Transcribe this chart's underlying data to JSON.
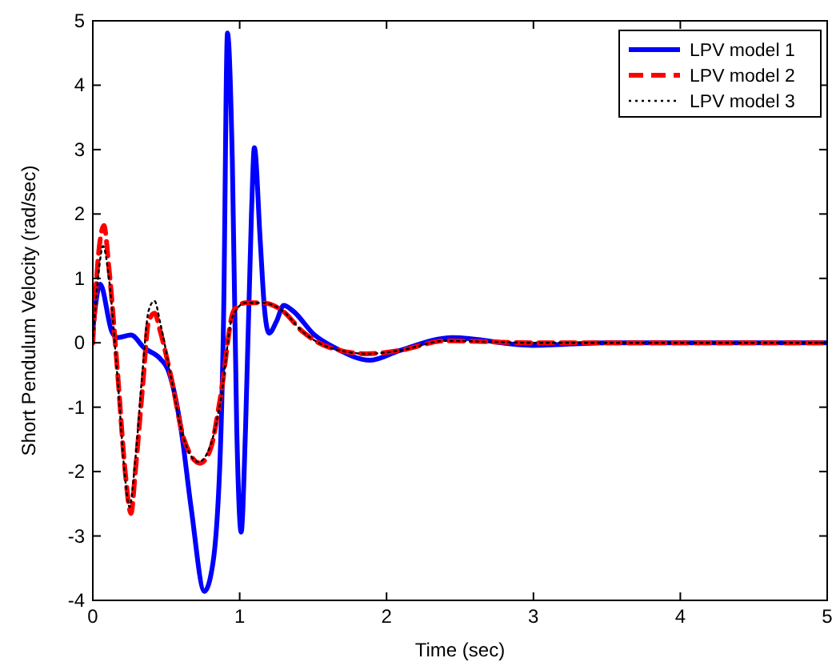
{
  "chart_data": {
    "type": "line",
    "xlabel": "Time (sec)",
    "ylabel": "Short Pendulum Velocity (rad/sec)",
    "xlim": [
      0,
      5
    ],
    "ylim": [
      -4,
      5
    ],
    "xticks": [
      0,
      1,
      2,
      3,
      4,
      5
    ],
    "yticks": [
      -4,
      -3,
      -2,
      -1,
      0,
      1,
      2,
      3,
      4,
      5
    ],
    "legend": "top right",
    "grid": false,
    "series": [
      {
        "name": "LPV model 1",
        "color": "#0000ff",
        "line_style": "solid",
        "x": [
          0,
          0.05,
          0.13,
          0.17,
          0.26,
          0.35,
          0.46,
          0.51,
          0.6,
          0.67,
          0.76,
          0.8,
          0.86,
          0.89,
          0.917,
          0.95,
          0.98,
          1.01,
          1.04,
          1.08,
          1.1,
          1.14,
          1.17,
          1.2,
          1.25,
          1.3,
          1.36,
          1.51,
          1.65,
          1.89,
          2.09,
          2.45,
          2.99,
          3.5,
          4,
          5
        ],
        "values": [
          0.2,
          0.91,
          0.17,
          0.08,
          0.12,
          -0.08,
          -0.25,
          -0.41,
          -1.33,
          -2.57,
          -3.86,
          -3.65,
          -2.16,
          0.33,
          4.81,
          2.82,
          -1.33,
          -2.94,
          -1.33,
          1.99,
          3.03,
          1.58,
          0.5,
          0.15,
          0.33,
          0.58,
          0.5,
          0.12,
          -0.08,
          -0.27,
          -0.12,
          0.08,
          -0.04,
          0,
          0,
          0
        ]
      },
      {
        "name": "LPV model 2",
        "color": "#ff0000",
        "line_style": "dashed",
        "x": [
          0,
          0.04,
          0.076,
          0.11,
          0.17,
          0.22,
          0.26,
          0.29,
          0.34,
          0.38,
          0.42,
          0.46,
          0.53,
          0.62,
          0.73,
          0.8,
          0.87,
          0.96,
          1.04,
          1.16,
          1.29,
          1.43,
          1.62,
          1.87,
          2.09,
          2.4,
          3,
          4,
          5
        ],
        "values": [
          0,
          1.4,
          1.82,
          1.16,
          -0.5,
          -1.99,
          -2.65,
          -1.99,
          -0.66,
          0.33,
          0.46,
          0.17,
          -0.5,
          -1.49,
          -1.87,
          -1.66,
          -0.83,
          0.5,
          0.62,
          0.62,
          0.5,
          0.17,
          -0.08,
          -0.17,
          -0.12,
          0.03,
          0,
          0,
          0
        ]
      },
      {
        "name": "LPV model 3",
        "color": "#000000",
        "line_style": "dotted",
        "x": [
          0,
          0.04,
          0.07,
          0.11,
          0.17,
          0.22,
          0.25,
          0.29,
          0.34,
          0.38,
          0.42,
          0.46,
          0.53,
          0.62,
          0.72,
          0.8,
          0.87,
          0.95,
          1.04,
          1.16,
          1.29,
          1.43,
          1.62,
          1.87,
          2.09,
          2.4,
          3,
          4,
          5
        ],
        "values": [
          0,
          1.1,
          1.5,
          1.0,
          -0.6,
          -2.1,
          -2.55,
          -1.8,
          -0.4,
          0.5,
          0.65,
          0.3,
          -0.5,
          -1.5,
          -1.85,
          -1.6,
          -0.9,
          0.4,
          0.62,
          0.62,
          0.5,
          0.17,
          -0.08,
          -0.17,
          -0.12,
          0.03,
          0,
          0,
          0
        ]
      }
    ]
  }
}
